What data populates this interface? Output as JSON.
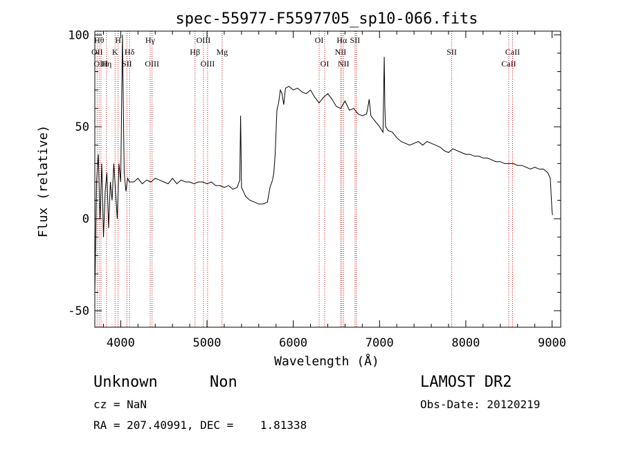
{
  "chart_data": {
    "type": "line",
    "title": "spec-55977-F5597705_sp10-066.fits",
    "xlabel": "Wavelength (Å)",
    "ylabel": "Flux (relative)",
    "xlim": [
      3700,
      9100
    ],
    "ylim": [
      -59,
      102
    ],
    "xticks": [
      4000,
      5000,
      6000,
      7000,
      8000,
      9000
    ],
    "yticks": [
      -50,
      0,
      50,
      100
    ],
    "x": [
      3700,
      3720,
      3740,
      3760,
      3780,
      3800,
      3820,
      3840,
      3860,
      3880,
      3900,
      3920,
      3940,
      3960,
      3980,
      4000,
      4020,
      4040,
      4060,
      4080,
      4100,
      4150,
      4200,
      4250,
      4300,
      4350,
      4400,
      4450,
      4500,
      4550,
      4600,
      4650,
      4700,
      4750,
      4800,
      4850,
      4900,
      4950,
      5000,
      5050,
      5100,
      5150,
      5200,
      5250,
      5300,
      5350,
      5380,
      5390,
      5400,
      5420,
      5450,
      5500,
      5550,
      5600,
      5650,
      5700,
      5730,
      5760,
      5775,
      5790,
      5810,
      5830,
      5850,
      5870,
      5890,
      5910,
      5950,
      6000,
      6050,
      6100,
      6150,
      6200,
      6250,
      6300,
      6350,
      6400,
      6450,
      6500,
      6550,
      6600,
      6650,
      6700,
      6750,
      6800,
      6850,
      6870,
      6880,
      6900,
      6950,
      7000,
      7040,
      7055,
      7062,
      7070,
      7100,
      7150,
      7200,
      7250,
      7300,
      7350,
      7400,
      7450,
      7500,
      7550,
      7600,
      7650,
      7700,
      7750,
      7800,
      7850,
      7900,
      7950,
      8000,
      8050,
      8100,
      8150,
      8200,
      8250,
      8300,
      8350,
      8400,
      8450,
      8500,
      8550,
      8600,
      8650,
      8700,
      8750,
      8800,
      8850,
      8900,
      8950,
      8980,
      8995,
      9000,
      9005
    ],
    "y": [
      -40,
      20,
      35,
      0,
      30,
      -10,
      15,
      25,
      -5,
      20,
      10,
      30,
      15,
      0,
      30,
      20,
      100,
      25,
      15,
      22,
      20,
      20,
      22,
      19,
      21,
      20,
      22,
      21,
      20,
      19,
      22,
      19,
      21,
      20,
      20,
      19,
      20,
      20,
      19,
      20,
      18,
      18,
      17,
      18,
      16,
      17,
      21,
      56,
      17,
      15,
      12,
      10,
      9,
      8,
      8,
      9,
      17,
      21,
      25,
      35,
      59,
      63,
      70,
      68,
      62,
      71,
      72,
      70,
      71,
      69,
      68,
      70,
      66,
      63,
      66,
      68,
      65,
      61,
      60,
      64,
      59,
      60,
      57,
      56,
      57,
      62,
      65,
      56,
      53,
      50,
      47,
      88,
      60,
      50,
      48,
      47,
      44,
      42,
      41,
      40,
      41,
      42,
      40,
      42,
      41,
      40,
      39,
      37,
      36,
      38,
      37,
      36,
      35,
      35,
      34,
      34,
      33,
      33,
      32,
      31,
      31,
      30,
      30,
      30,
      29,
      29,
      28,
      27,
      28,
      27,
      27,
      25,
      22,
      8,
      4,
      2
    ],
    "lines": [
      {
        "w": 3727,
        "label": "OII",
        "row": 2
      },
      {
        "w": 3750,
        "label": "Hθ",
        "row": 1
      },
      {
        "w": 3771,
        "label": "OIII",
        "row": 3
      },
      {
        "w": 3835,
        "label": "Hη",
        "row": 3
      },
      {
        "w": 3934,
        "label": "K",
        "row": 2
      },
      {
        "w": 3969,
        "label": "H",
        "row": 1
      },
      {
        "w": 4072,
        "label": "SII",
        "row": 3
      },
      {
        "w": 4102,
        "label": "Hδ",
        "row": 2
      },
      {
        "w": 4341,
        "label": "Hγ",
        "row": 1
      },
      {
        "w": 4363,
        "label": "OIII",
        "row": 3
      },
      {
        "w": 4861,
        "label": "Hβ",
        "row": 2
      },
      {
        "w": 4959,
        "label": "OIII",
        "row": 1
      },
      {
        "w": 5007,
        "label": "OIII",
        "row": 3
      },
      {
        "w": 5175,
        "label": "Mg",
        "row": 2
      },
      {
        "w": 6300,
        "label": "OI",
        "row": 1
      },
      {
        "w": 6364,
        "label": "OI",
        "row": 3
      },
      {
        "w": 6548,
        "label": "NII",
        "row": 2
      },
      {
        "w": 6563,
        "label": "Hα",
        "row": 1
      },
      {
        "w": 6583,
        "label": "NII",
        "row": 3
      },
      {
        "w": 6716,
        "label": "SII",
        "row": 1
      },
      {
        "w": 6731,
        "label": "",
        "row": 1
      },
      {
        "w": 7837,
        "label": "SII",
        "row": 2
      },
      {
        "w": 8498,
        "label": "CaII",
        "row": 3
      },
      {
        "w": 8542,
        "label": "CaII",
        "row": 2
      }
    ]
  },
  "info": {
    "class": "Unknown",
    "subclass": "Non",
    "cz": "cz = NaN",
    "coords": "RA = 207.40991, DEC =    1.81338",
    "survey": "LAMOST DR2",
    "obs_date": "Obs-Date: 20120219"
  },
  "colors": {
    "line": "#000000",
    "marker": "#cc0000",
    "axis": "#000000"
  }
}
